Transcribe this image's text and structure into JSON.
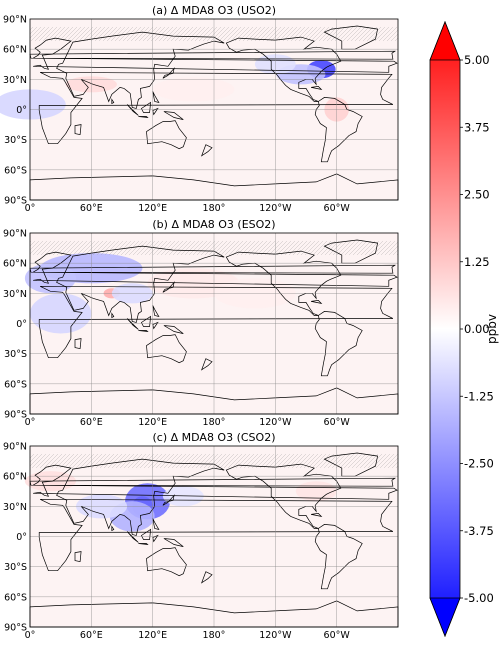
{
  "panels": [
    {
      "title": "(a) Δ MDA8 O3 (USO2)",
      "hotspots": [
        {
          "lon": -75,
          "lat": 40,
          "value": -3.6,
          "rx": 14,
          "ry": 9
        },
        {
          "lon": -95,
          "lat": 35,
          "value": -1.2,
          "rx": 24,
          "ry": 10
        },
        {
          "lon": -120,
          "lat": 45,
          "value": -0.6,
          "rx": 20,
          "ry": 10
        },
        {
          "lon": 0,
          "lat": 5,
          "value": -0.8,
          "rx": 35,
          "ry": 15
        },
        {
          "lon": 60,
          "lat": 25,
          "value": 0.7,
          "rx": 25,
          "ry": 8
        },
        {
          "lon": -60,
          "lat": 0,
          "value": 0.9,
          "rx": 12,
          "ry": 12
        },
        {
          "lon": 160,
          "lat": 20,
          "value": 0.3,
          "rx": 40,
          "ry": 12
        }
      ]
    },
    {
      "title": "(b) Δ MDA8 O3 (ESO2)",
      "hotspots": [
        {
          "lon": 80,
          "lat": 30,
          "value": 1.6,
          "rx": 8,
          "ry": 5
        },
        {
          "lon": 60,
          "lat": 55,
          "value": -1.4,
          "rx": 50,
          "ry": 15
        },
        {
          "lon": 20,
          "lat": 45,
          "value": -1.2,
          "rx": 25,
          "ry": 15
        },
        {
          "lon": 30,
          "lat": 10,
          "value": -0.8,
          "rx": 30,
          "ry": 20
        },
        {
          "lon": 100,
          "lat": 30,
          "value": -0.7,
          "rx": 20,
          "ry": 10
        },
        {
          "lon": 160,
          "lat": 40,
          "value": 0.4,
          "rx": 45,
          "ry": 15
        },
        {
          "lon": -140,
          "lat": 30,
          "value": 0.3,
          "rx": 40,
          "ry": 15
        }
      ]
    },
    {
      "title": "(c) Δ MDA8 O3 (CSO2)",
      "hotspots": [
        {
          "lon": 110,
          "lat": 30,
          "value": -4.6,
          "rx": 10,
          "ry": 10
        },
        {
          "lon": 115,
          "lat": 35,
          "value": -2.8,
          "rx": 22,
          "ry": 18
        },
        {
          "lon": 100,
          "lat": 20,
          "value": -1.5,
          "rx": 22,
          "ry": 15
        },
        {
          "lon": 70,
          "lat": 30,
          "value": -0.7,
          "rx": 25,
          "ry": 12
        },
        {
          "lon": 150,
          "lat": 40,
          "value": -0.5,
          "rx": 20,
          "ry": 10
        },
        {
          "lon": 20,
          "lat": 55,
          "value": 0.6,
          "rx": 25,
          "ry": 10
        },
        {
          "lon": -80,
          "lat": 45,
          "value": 0.5,
          "rx": 20,
          "ry": 10
        }
      ]
    }
  ],
  "lat_labels": [
    "90°N",
    "60°N",
    "30°N",
    "0°",
    "30°S",
    "60°S",
    "90°S"
  ],
  "lon_labels": [
    "0°",
    "60°E",
    "120°E",
    "180°",
    "120°W",
    "60°W"
  ],
  "colorbar": {
    "label": "ppbv",
    "tick_labels": [
      "5.00",
      "3.75",
      "2.50",
      "1.25",
      "0.00",
      "-1.25",
      "-2.50",
      "-3.75",
      "-5.00"
    ],
    "vmin": -5,
    "vmax": 5,
    "colors": {
      "min": "#0000ff",
      "mid": "#ffffff",
      "max": "#ff0000"
    }
  }
}
